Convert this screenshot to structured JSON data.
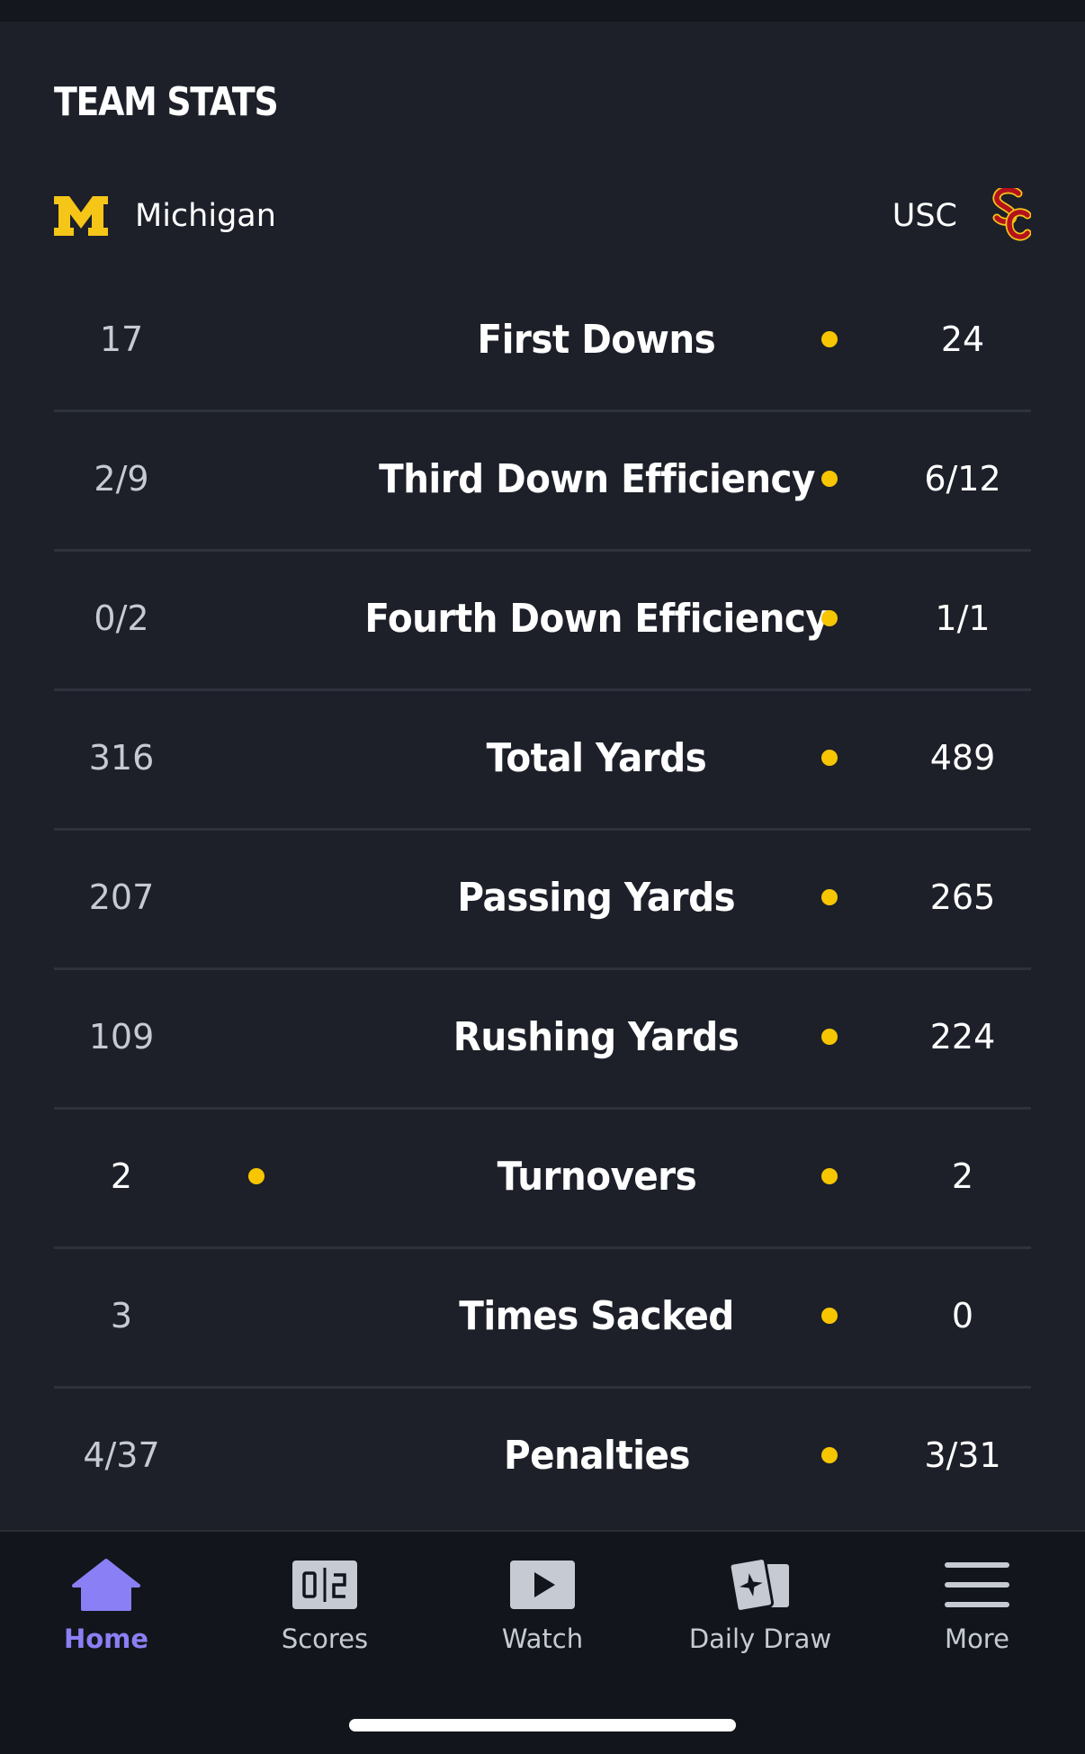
{
  "section": {
    "title": "TEAM STATS"
  },
  "teams": {
    "home": {
      "name": "Michigan",
      "logo_icon": "michigan-block-m-logo",
      "color": "#f5c518"
    },
    "away": {
      "name": "USC",
      "logo_icon": "usc-sc-logo",
      "color": "#b3121c"
    }
  },
  "indicator_color": "#f7c600",
  "stats": [
    {
      "label": "First Downs",
      "home": "17",
      "away": "24",
      "leader": "away"
    },
    {
      "label": "Third Down Efficiency",
      "home": "2/9",
      "away": "6/12",
      "leader": "away"
    },
    {
      "label": "Fourth Down Efficiency",
      "home": "0/2",
      "away": "1/1",
      "leader": "away"
    },
    {
      "label": "Total Yards",
      "home": "316",
      "away": "489",
      "leader": "away"
    },
    {
      "label": "Passing Yards",
      "home": "207",
      "away": "265",
      "leader": "away"
    },
    {
      "label": "Rushing Yards",
      "home": "109",
      "away": "224",
      "leader": "away"
    },
    {
      "label": "Turnovers",
      "home": "2",
      "away": "2",
      "leader": "both"
    },
    {
      "label": "Times Sacked",
      "home": "3",
      "away": "0",
      "leader": "away"
    },
    {
      "label": "Penalties",
      "home": "4/37",
      "away": "3/31",
      "leader": "away"
    }
  ],
  "nav": {
    "active": "home",
    "active_color": "#8a7ff5",
    "items": [
      {
        "id": "home",
        "label": "Home",
        "icon": "home-icon"
      },
      {
        "id": "scores",
        "label": "Scores",
        "icon": "scores-icon"
      },
      {
        "id": "watch",
        "label": "Watch",
        "icon": "play-icon"
      },
      {
        "id": "daily-draw",
        "label": "Daily Draw",
        "icon": "cards-icon"
      },
      {
        "id": "more",
        "label": "More",
        "icon": "menu-icon"
      }
    ]
  }
}
